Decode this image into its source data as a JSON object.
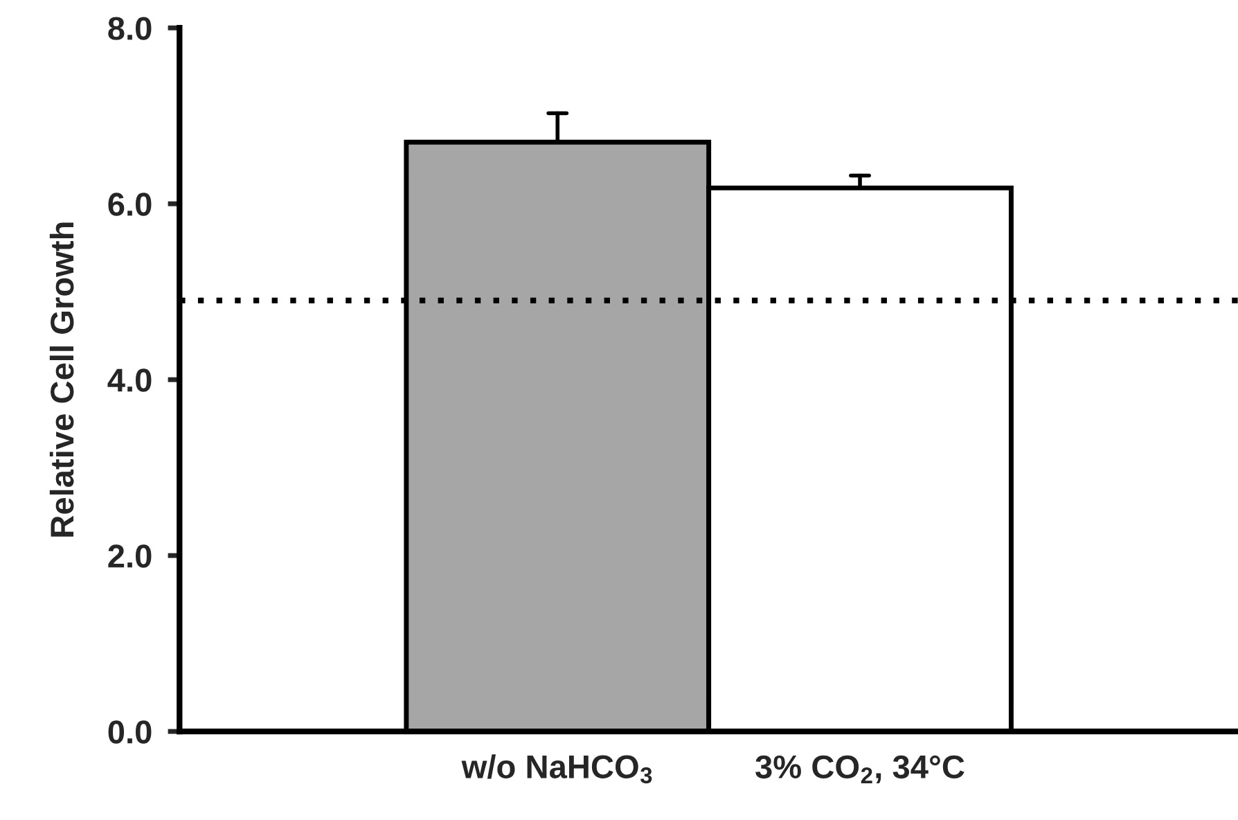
{
  "chart_data": {
    "type": "bar",
    "ylabel": "Relative Cell Growth",
    "categories": [
      "w/o NaHCO$_{3}$",
      "3% CO$_{2}$, 34°C"
    ],
    "values": [
      6.7,
      6.18
    ],
    "colors": [
      "#a6a6a6",
      "#ffffff"
    ],
    "errors": [
      [
        6.7,
        7.03
      ],
      [
        6.18,
        6.32
      ]
    ],
    "ylim": [
      0,
      8
    ],
    "yticks": [
      {
        "value": 0,
        "label": "0.0"
      },
      {
        "value": 2,
        "label": "2.0"
      },
      {
        "value": 4,
        "label": "4.0"
      },
      {
        "value": 6,
        "label": "6.0"
      },
      {
        "value": 8,
        "label": "8.0"
      }
    ],
    "ref_lines": [
      {
        "axis": "y",
        "value": 4.9,
        "label": null,
        "color": "#000000",
        "line_style": "dotted"
      }
    ],
    "grid": false,
    "legend": false
  }
}
